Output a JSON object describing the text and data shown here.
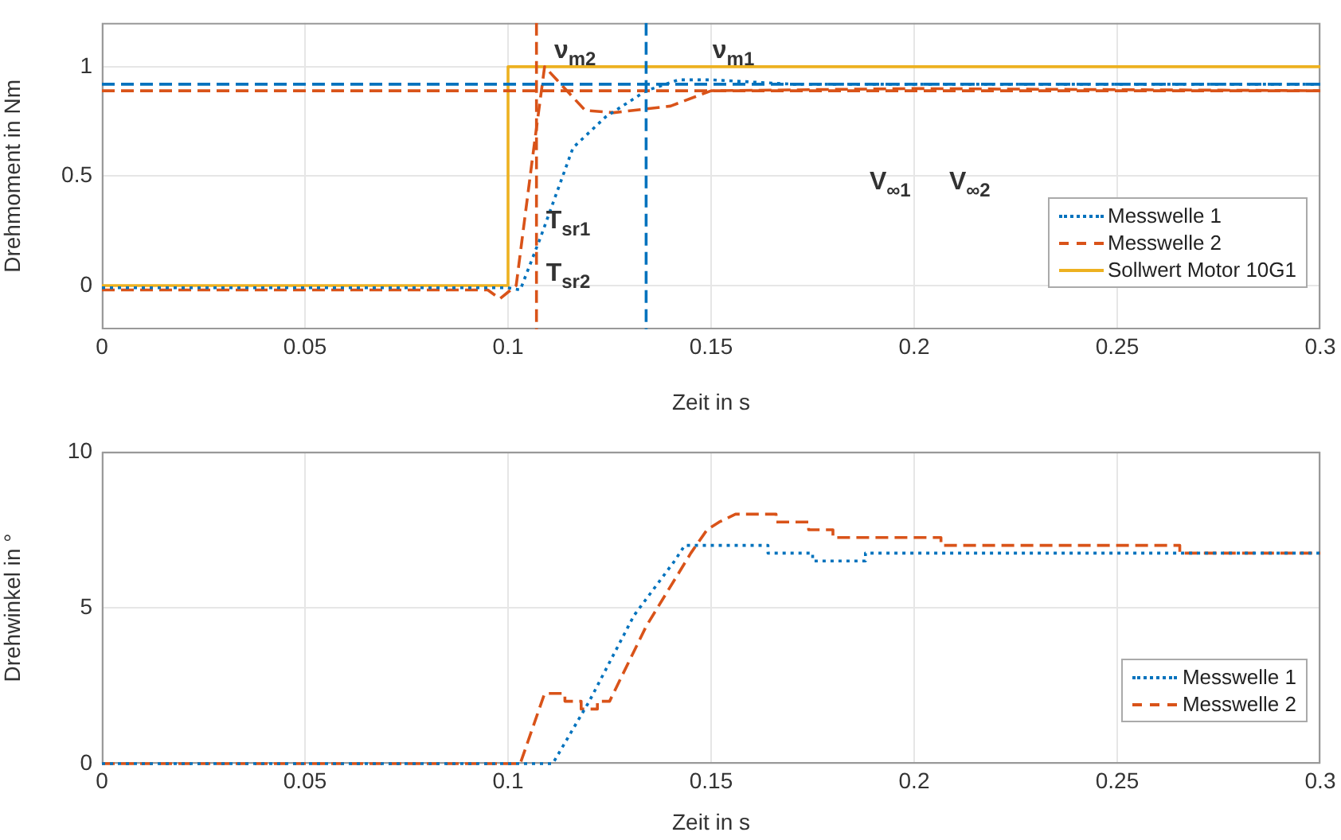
{
  "chart_data": [
    {
      "type": "line",
      "xlabel": "Zeit in s",
      "ylabel": "Drehmoment in Nm",
      "xlim": [
        0,
        0.3
      ],
      "ylim": [
        -0.2,
        1.2
      ],
      "xticks": [
        0,
        0.05,
        0.1,
        0.15,
        0.2,
        0.25,
        0.3
      ],
      "yticks": [
        0,
        0.5,
        1
      ],
      "grid": true,
      "legend": "bottom right",
      "series": [
        {
          "name": "Messwelle 1",
          "color": "#0072bd",
          "line_style": "dotted",
          "x": [
            0,
            0.05,
            0.1,
            0.103,
            0.108,
            0.116,
            0.124,
            0.134,
            0.142,
            0.15,
            0.16,
            0.17,
            0.2,
            0.3
          ],
          "values": [
            -0.01,
            -0.01,
            -0.01,
            -0.02,
            0.22,
            0.63,
            0.77,
            0.89,
            0.94,
            0.94,
            0.93,
            0.92,
            0.92,
            0.92
          ]
        },
        {
          "name": "Messwelle 2",
          "color": "#d95319",
          "line_style": "dashed",
          "x": [
            0,
            0.05,
            0.095,
            0.098,
            0.102,
            0.106,
            0.109,
            0.112,
            0.119,
            0.126,
            0.14,
            0.15,
            0.2,
            0.3
          ],
          "values": [
            -0.02,
            -0.02,
            -0.02,
            -0.06,
            0,
            0.58,
            1,
            0.94,
            0.8,
            0.79,
            0.82,
            0.89,
            0.9,
            0.89
          ]
        },
        {
          "name": "Sollwert Motor 10G1",
          "color": "#edb120",
          "line_style": "solid",
          "x": [
            0,
            0.1,
            0.1,
            0.3
          ],
          "values": [
            0,
            0,
            1,
            1
          ]
        }
      ],
      "ref_lines": [
        {
          "axis": "y",
          "value": 0.92,
          "color": "#0072bd",
          "line_style": "dashed"
        },
        {
          "axis": "y",
          "value": 0.89,
          "color": "#d95319",
          "line_style": "dashed"
        },
        {
          "axis": "x",
          "value": 0.107,
          "color": "#d95319",
          "line_style": "dashed"
        },
        {
          "axis": "x",
          "value": 0.134,
          "color": "#0072bd",
          "line_style": "dashed"
        }
      ],
      "annotations": [
        {
          "text": "ν$_{m2}$",
          "x": 0.109,
          "y": 1
        },
        {
          "text": "ν$_{m1}$",
          "x": 0.148,
          "y": 1
        },
        {
          "text": "T$_{sr1}$",
          "x": 0.107,
          "y": 0.22
        },
        {
          "text": "T$_{sr2}$",
          "x": 0.107,
          "y": -0.02
        },
        "V$_{∞1}$",
        "V$_{∞2}$"
      ]
    },
    {
      "type": "line",
      "xlabel": "Zeit in s",
      "ylabel": "Drehwinkel in °",
      "xlim": [
        0,
        0.3
      ],
      "ylim": [
        0,
        10
      ],
      "xticks": [
        0,
        0.05,
        0.1,
        0.15,
        0.2,
        0.25,
        0.3
      ],
      "yticks": [
        0,
        5,
        10
      ],
      "grid": true,
      "legend": "bottom right",
      "series": [
        {
          "name": "Messwelle 1",
          "color": "#0072bd",
          "line_style": "dotted",
          "x": [
            0,
            0.111,
            0.12,
            0.131,
            0.141,
            0.1435,
            0.164,
            0.164,
            0.175,
            0.175,
            0.188,
            0.188,
            0.3
          ],
          "values": [
            0,
            0,
            2,
            4.75,
            6.5,
            7,
            7,
            6.75,
            6.75,
            6.5,
            6.5,
            6.75,
            6.75
          ]
        },
        {
          "name": "Messwelle 2",
          "color": "#d95319",
          "line_style": "dashed",
          "x": [
            0,
            0.103,
            0.109,
            0.114,
            0.114,
            0.118,
            0.118,
            0.122,
            0.122,
            0.125,
            0.134,
            0.145,
            0.149,
            0.152,
            0.156,
            0.166,
            0.166,
            0.174,
            0.174,
            0.18,
            0.18,
            0.2066,
            0.2066,
            0.2654,
            0.2654,
            0.3
          ],
          "values": [
            0,
            0,
            2.25,
            2.25,
            2,
            2,
            1.75,
            1.75,
            2,
            2,
            4.4,
            6.75,
            7.5,
            7.75,
            8,
            8,
            7.75,
            7.75,
            7.5,
            7.5,
            7.25,
            7.25,
            7,
            7,
            6.75,
            6.75
          ]
        }
      ]
    }
  ]
}
